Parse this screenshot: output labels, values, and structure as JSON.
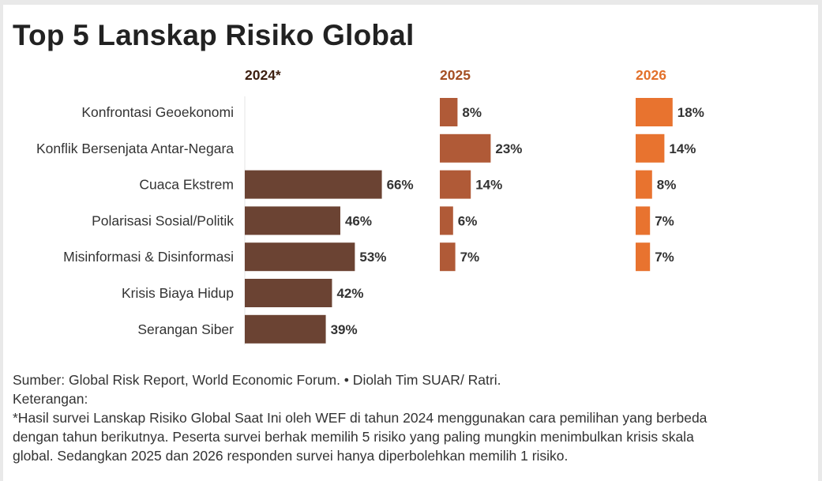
{
  "title": "Top 5 Lanskap Risiko Global",
  "chart_data": {
    "type": "bar",
    "orientation": "horizontal",
    "title": "Top 5 Lanskap Risiko Global",
    "categories": [
      "Konfrontasi Geoekonomi",
      "Konflik Bersenjata Antar-Negara",
      "Cuaca Ekstrem",
      "Polarisasi Sosial/Politik",
      "Misinformasi & Disinformasi",
      "Krisis Biaya Hidup",
      "Serangan Siber"
    ],
    "value_suffix": "%",
    "series": [
      {
        "name": "2024*",
        "color": "#6b4333",
        "values": [
          null,
          null,
          66,
          46,
          53,
          42,
          39
        ]
      },
      {
        "name": "2025",
        "color": "#b05a37",
        "values": [
          8,
          23,
          14,
          6,
          7,
          null,
          null
        ]
      },
      {
        "name": "2026",
        "color": "#e8732f",
        "values": [
          18,
          14,
          8,
          7,
          7,
          null,
          null
        ]
      }
    ],
    "header_colors": [
      "#3d1f10",
      "#a44f23",
      "#e2702a"
    ],
    "label_color": "#333333",
    "axis_line_color": "#e6e6e6"
  },
  "footer": {
    "source": "Sumber: Global Risk Report, World Economic Forum. • Diolah Tim SUAR/ Ratri.",
    "note_label": "Keterangan:",
    "note_line_1": "*Hasil survei Lanskap Risiko Global Saat Ini oleh WEF di tahun 2024 menggunakan cara pemilihan yang berbeda",
    "note_line_2": "dengan tahun berikutnya. Peserta survei berhak memilih 5 risiko yang paling mungkin menimbulkan krisis skala",
    "note_line_3": "global. Sedangkan 2025 dan 2026 responden survei hanya diperbolehkan memilih 1 risiko."
  }
}
